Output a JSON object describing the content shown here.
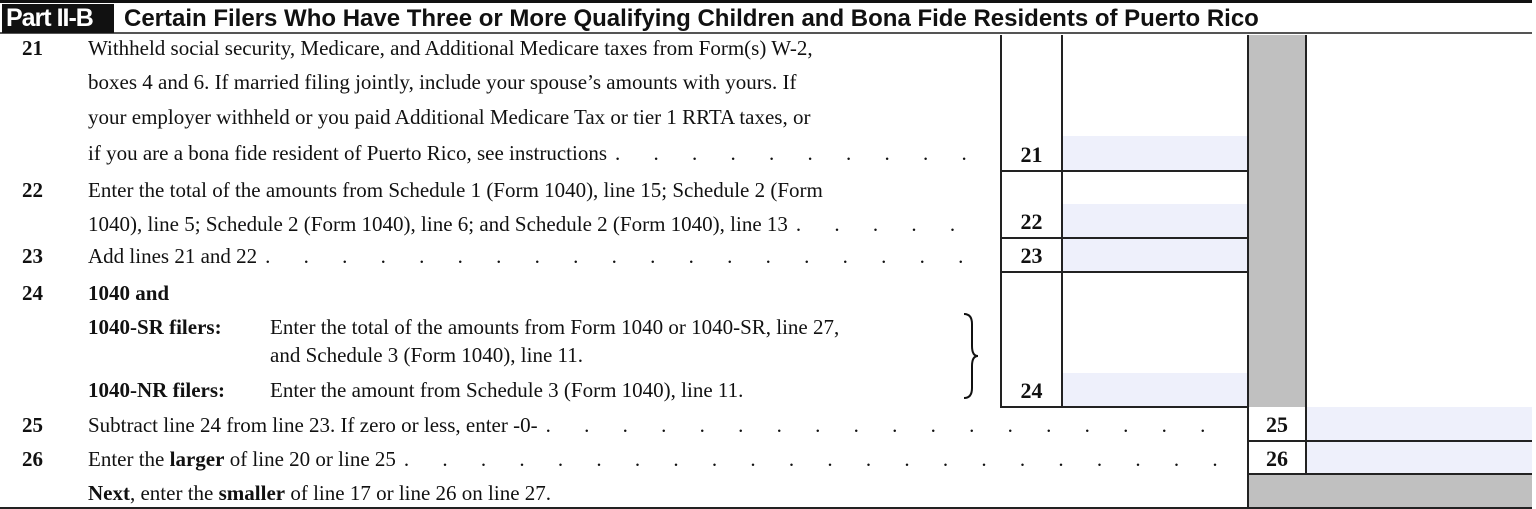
{
  "header": {
    "part": "Part II-B",
    "title": "Certain Filers Who Have Three or More Qualifying Children and Bona Fide Residents of Puerto Rico"
  },
  "lines": {
    "l21": {
      "num": "21",
      "text": [
        "Withheld social security, Medicare, and Additional Medicare taxes from Form(s) W-2,",
        "boxes 4 and 6. If married filing jointly, include your spouse’s amounts with yours. If",
        "your employer withheld or you paid Additional Medicare Tax or tier 1 RRTA taxes, or",
        "if you are a bona fide resident of Puerto Rico, see instructions"
      ],
      "box": "21",
      "value": ""
    },
    "l22": {
      "num": "22",
      "text": [
        "Enter the total of the amounts from Schedule 1 (Form 1040), line 15; Schedule 2 (Form",
        "1040), line 5; Schedule 2 (Form 1040), line 6; and Schedule 2 (Form 1040), line 13"
      ],
      "box": "22",
      "value": ""
    },
    "l23": {
      "num": "23",
      "text": "Add lines 21 and 22",
      "box": "23",
      "value": ""
    },
    "l24": {
      "num": "24",
      "heading": "1040 and",
      "sr_label": "1040-SR filers:",
      "sr_text": [
        "Enter the total of the amounts from Form 1040 or 1040-SR, line 27,",
        "and Schedule 3 (Form 1040), line 11."
      ],
      "nr_label": "1040-NR filers:",
      "nr_text": "Enter the amount from Schedule 3 (Form 1040), line 11.",
      "box": "24",
      "value": ""
    },
    "l25": {
      "num": "25",
      "text": "Subtract line 24 from line 23. If zero or less, enter -0-",
      "box": "25",
      "value": ""
    },
    "l26": {
      "num": "26",
      "text_a": "Enter the ",
      "text_bold": "larger",
      "text_b": " of line 20 or line 25",
      "box": "26",
      "value": ""
    },
    "next": {
      "bold_a": "Next",
      "text_a": ", enter the ",
      "bold_b": "smaller",
      "text_b": " of line 17 or line 26 on line 27."
    }
  },
  "colors": {
    "input_fill": "#eef0fb",
    "shade": "#c0c0c0"
  }
}
